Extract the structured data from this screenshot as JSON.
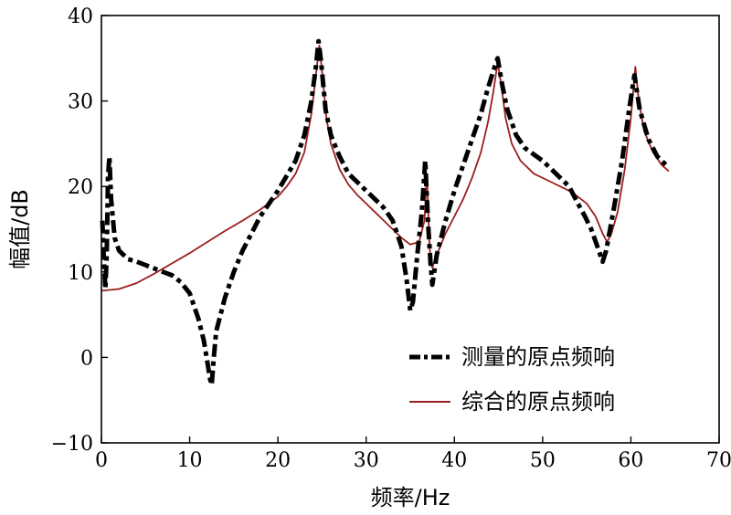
{
  "chart_data": {
    "type": "line",
    "xlabel": "频率/Hz",
    "ylabel": "幅值/dB",
    "xlim": [
      0,
      70
    ],
    "ylim": [
      -10,
      40
    ],
    "x_ticks": [
      "0",
      "10",
      "20",
      "30",
      "40",
      "50",
      "60",
      "70"
    ],
    "y_ticks": [
      "−10",
      "0",
      "10",
      "20",
      "30",
      "40"
    ],
    "grid": false,
    "legend_position": "bottom-right",
    "series": [
      {
        "name": "测量的原点频响",
        "color": "#000000",
        "style": "dash-dot",
        "points": [
          [
            0.1,
            16
          ],
          [
            0.3,
            11
          ],
          [
            0.45,
            8
          ],
          [
            0.6,
            12
          ],
          [
            0.75,
            21
          ],
          [
            0.9,
            23.5
          ],
          [
            1.1,
            18.5
          ],
          [
            1.5,
            14
          ],
          [
            2,
            12.5
          ],
          [
            3,
            11.5
          ],
          [
            4,
            11.2
          ],
          [
            5,
            10.8
          ],
          [
            6,
            10.4
          ],
          [
            7,
            10
          ],
          [
            8,
            9.6
          ],
          [
            9,
            8.8
          ],
          [
            10,
            7.5
          ],
          [
            11,
            4.5
          ],
          [
            11.6,
            2
          ],
          [
            12,
            -0.5
          ],
          [
            12.3,
            -2.5
          ],
          [
            12.5,
            -3.2
          ],
          [
            12.7,
            -0.5
          ],
          [
            13,
            3
          ],
          [
            14,
            7
          ],
          [
            15,
            10
          ],
          [
            16,
            12.5
          ],
          [
            17,
            14.5
          ],
          [
            18,
            16.5
          ],
          [
            20,
            19.5
          ],
          [
            22,
            23
          ],
          [
            23,
            26
          ],
          [
            23.8,
            30
          ],
          [
            24.3,
            34
          ],
          [
            24.6,
            37
          ],
          [
            24.9,
            34.5
          ],
          [
            25.4,
            29
          ],
          [
            26,
            26
          ],
          [
            27,
            23.5
          ],
          [
            28,
            21.5
          ],
          [
            29,
            20.5
          ],
          [
            30,
            19.5
          ],
          [
            31,
            18.5
          ],
          [
            32,
            17.5
          ],
          [
            33,
            16
          ],
          [
            34,
            13
          ],
          [
            34.6,
            9
          ],
          [
            35,
            5.5
          ],
          [
            35.3,
            6.5
          ],
          [
            35.8,
            12
          ],
          [
            36.3,
            17
          ],
          [
            36.7,
            23
          ],
          [
            37,
            16
          ],
          [
            37.3,
            11
          ],
          [
            37.5,
            8.5
          ],
          [
            38,
            12
          ],
          [
            39,
            16
          ],
          [
            40,
            19.5
          ],
          [
            41,
            22.5
          ],
          [
            42,
            25.5
          ],
          [
            43,
            28.5
          ],
          [
            43.8,
            31.5
          ],
          [
            44.4,
            33.5
          ],
          [
            44.9,
            35
          ],
          [
            45.4,
            32
          ],
          [
            46,
            29
          ],
          [
            47,
            26
          ],
          [
            48,
            24.5
          ],
          [
            50,
            23
          ],
          [
            52,
            21
          ],
          [
            53,
            20
          ],
          [
            54,
            18
          ],
          [
            54.8,
            16.5
          ],
          [
            55.5,
            15
          ],
          [
            56.2,
            13
          ],
          [
            56.8,
            11.2
          ],
          [
            57.2,
            12.5
          ],
          [
            58,
            17
          ],
          [
            59,
            23
          ],
          [
            59.8,
            29
          ],
          [
            60.4,
            33
          ],
          [
            61,
            29
          ],
          [
            62,
            25.5
          ],
          [
            63,
            23.5
          ],
          [
            64,
            22.5
          ]
        ]
      },
      {
        "name": "综合的原点频响",
        "color": "#9a1e1e",
        "style": "solid",
        "points": [
          [
            0,
            7.8
          ],
          [
            2,
            8
          ],
          [
            4,
            8.7
          ],
          [
            6,
            9.8
          ],
          [
            8,
            11
          ],
          [
            10,
            12.2
          ],
          [
            12,
            13.5
          ],
          [
            14,
            14.8
          ],
          [
            16,
            16
          ],
          [
            18,
            17.3
          ],
          [
            20,
            18.8
          ],
          [
            21,
            20
          ],
          [
            22,
            21.5
          ],
          [
            23,
            24
          ],
          [
            23.8,
            28.5
          ],
          [
            24.3,
            33
          ],
          [
            24.7,
            36.5
          ],
          [
            25,
            33.5
          ],
          [
            25.5,
            28
          ],
          [
            26,
            25
          ],
          [
            27,
            22
          ],
          [
            28,
            20.2
          ],
          [
            29,
            19
          ],
          [
            30,
            18
          ],
          [
            31,
            17
          ],
          [
            32,
            16
          ],
          [
            33,
            15
          ],
          [
            34,
            14
          ],
          [
            35,
            13.2
          ],
          [
            36,
            13.5
          ],
          [
            36.6,
            16
          ],
          [
            36.9,
            21.5
          ],
          [
            37.1,
            15
          ],
          [
            37.3,
            11
          ],
          [
            37.5,
            10.5
          ],
          [
            38,
            12
          ],
          [
            39,
            14.5
          ],
          [
            40,
            16.5
          ],
          [
            41,
            18.5
          ],
          [
            42,
            21
          ],
          [
            43,
            24
          ],
          [
            43.8,
            27.5
          ],
          [
            44.4,
            31
          ],
          [
            44.9,
            34.5
          ],
          [
            45.3,
            32
          ],
          [
            45.8,
            28
          ],
          [
            46.5,
            25
          ],
          [
            47.5,
            23
          ],
          [
            49,
            21.5
          ],
          [
            51,
            20.5
          ],
          [
            53,
            19.5
          ],
          [
            54,
            18.8
          ],
          [
            55,
            18
          ],
          [
            56,
            16.5
          ],
          [
            56.8,
            14.5
          ],
          [
            57.3,
            13.5
          ],
          [
            57.8,
            14.5
          ],
          [
            58.5,
            17
          ],
          [
            59.3,
            22
          ],
          [
            60,
            28
          ],
          [
            60.5,
            34
          ],
          [
            60.9,
            30
          ],
          [
            61.5,
            26.5
          ],
          [
            62.5,
            24
          ],
          [
            63.5,
            22.5
          ],
          [
            64.3,
            21.8
          ]
        ]
      }
    ]
  }
}
